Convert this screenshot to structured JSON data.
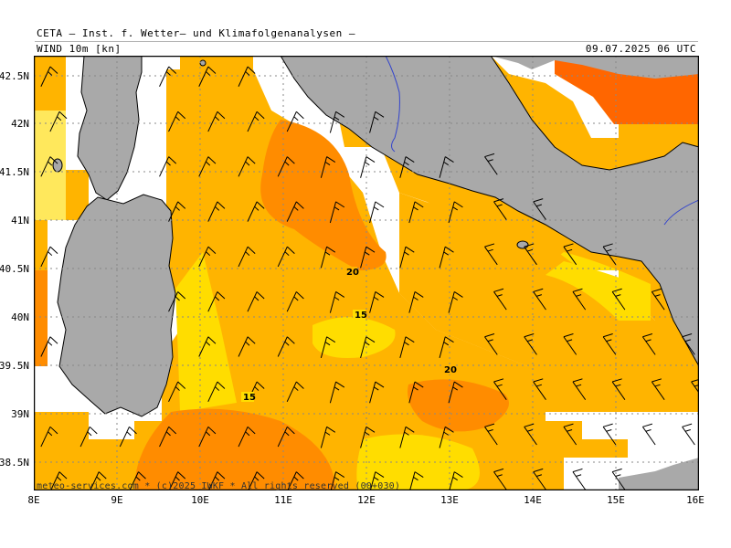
{
  "header": {
    "institution": "CETA — Inst. f. Wetter— und Klimafolgenanalysen —",
    "variable": "WIND  10m  [kn]",
    "valid_time": "09.07.2025  06  UTC"
  },
  "axes": {
    "lat_labels": [
      "42.5N",
      "42N",
      "41.5N",
      "41N",
      "40.5N",
      "40N",
      "39.5N",
      "39N",
      "38.5N"
    ],
    "lon_labels": [
      "8E",
      "9E",
      "10E",
      "11E",
      "12E",
      "13E",
      "14E",
      "15E",
      "16E"
    ]
  },
  "contour_labels": [
    "20",
    "15",
    "20",
    "15"
  ],
  "colors": {
    "land": "#a9a9a9",
    "water_lowwind": "#ffffff",
    "wind_10_15": "#ffe85c",
    "wind_15_20": "#ffdd00",
    "wind_20_25": "#ffb400",
    "wind_25_30": "#ff8c00",
    "wind_30_plus": "#ff6600",
    "grid": "#aaaaaa",
    "river": "#3344cc"
  },
  "credit": "meteo-services.com * (c)2025 IWKF * All rights reserved (00+030)"
}
